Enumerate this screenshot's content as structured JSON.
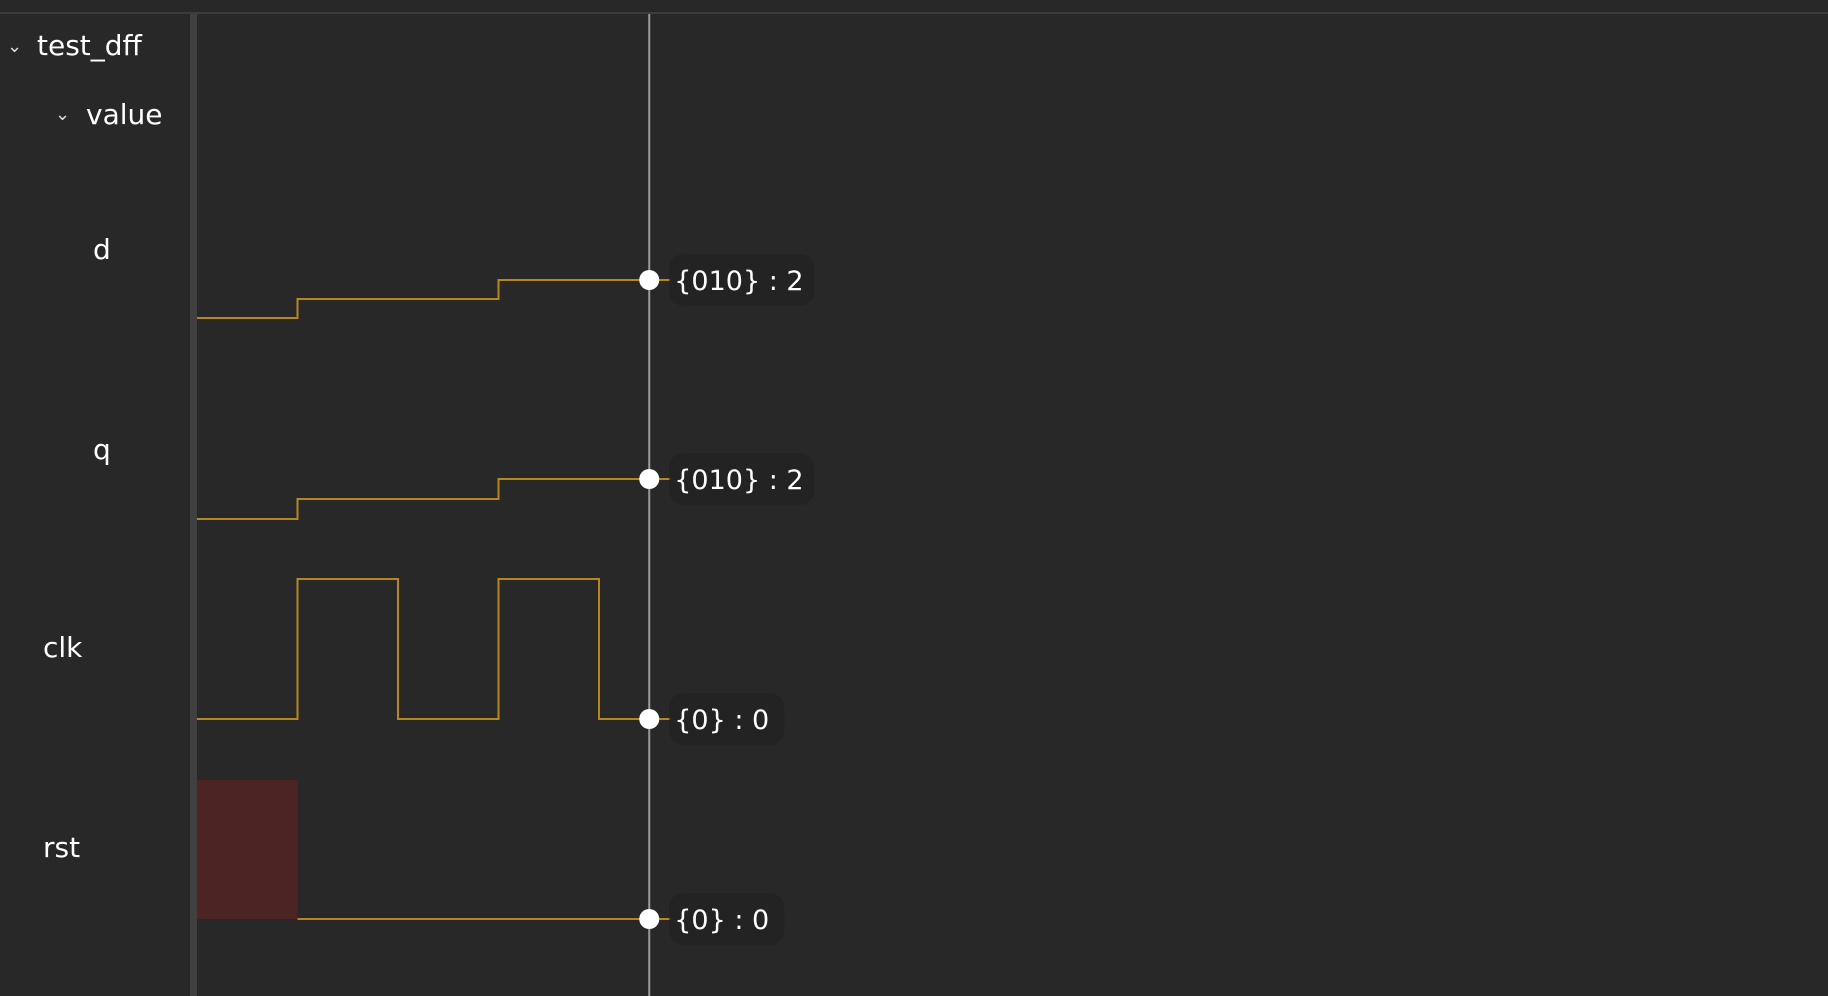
{
  "tree": {
    "root": {
      "label": "test_dff",
      "expanded": true,
      "icon": "chevron-down-icon"
    },
    "group": {
      "label": "value",
      "expanded": true,
      "icon": "chevron-down-icon"
    },
    "signals": [
      {
        "name": "d",
        "type": "bus",
        "transitions": [
          [
            0,
            0
          ],
          [
            1,
            1
          ],
          [
            3,
            2
          ]
        ],
        "cursor_value": "{010} : 2"
      },
      {
        "name": "q",
        "type": "bus",
        "transitions": [
          [
            0,
            0
          ],
          [
            1,
            1
          ],
          [
            3,
            2
          ]
        ],
        "cursor_value": "{010} : 2"
      },
      {
        "name": "clk",
        "type": "bit",
        "transitions": [
          [
            0,
            0
          ],
          [
            1,
            1
          ],
          [
            2,
            0
          ],
          [
            3,
            1
          ],
          [
            4,
            0
          ]
        ],
        "cursor_value": "{0} : 0"
      },
      {
        "name": "rst",
        "type": "bit",
        "transitions": [
          [
            0,
            1
          ],
          [
            1,
            0
          ]
        ],
        "cursor_value": "{0} : 0"
      }
    ]
  },
  "cursor_time": 4.5,
  "colors": {
    "trace": "#b8861f",
    "high_fill": "#4d2424",
    "cursor": "#9a9a9a",
    "background": "#282828",
    "divider": "#404040"
  }
}
